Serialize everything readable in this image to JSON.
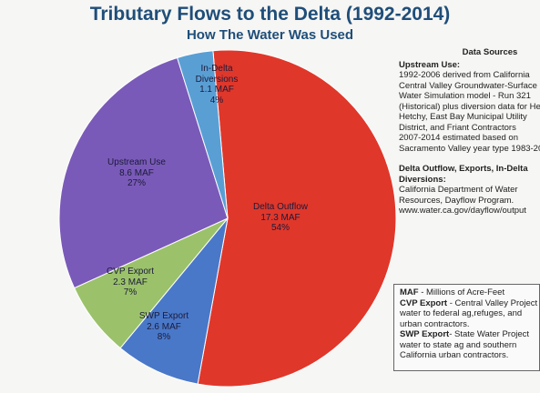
{
  "chart_data": {
    "type": "pie",
    "title": "Tributary Flows to the Delta (1992-2014)",
    "subtitle": "How The Water Was Used",
    "slices": [
      {
        "name": "Delta Outflow",
        "value": 17.3,
        "value_label": "17.3 MAF",
        "percent_label": "54%",
        "color": "#e0372b"
      },
      {
        "name": "SWP Export",
        "value": 2.6,
        "value_label": "2.6 MAF",
        "percent_label": "8%",
        "color": "#4a78c8"
      },
      {
        "name": "CVP Export",
        "value": 2.3,
        "value_label": "2.3 MAF",
        "percent_label": "7%",
        "color": "#9bc26a"
      },
      {
        "name": "Upstream Use",
        "value": 8.6,
        "value_label": "8.6 MAF",
        "percent_label": "27%",
        "color": "#7a5ab8"
      },
      {
        "name": "In-Delta Diversions",
        "name_lines": [
          "In-Delta",
          "Diversions"
        ],
        "value": 1.1,
        "value_label": "1.1 MAF",
        "percent_label": "4%",
        "color": "#5a9fd4"
      }
    ]
  },
  "sources": {
    "heading": "Data Sources",
    "upstream_heading": "Upstream Use:",
    "upstream_lines": [
      "1992-2006 derived from California",
      "Central Valley Groundwater-Surface",
      "Water Simulation model - Run 321",
      "(Historical) plus diversion data for He",
      "Hetchy, East Bay Municipal Utility",
      "District, and Friant Contractors",
      "2007-2014 estimated based on",
      "Sacramento Valley year type 1983-20"
    ],
    "delta_heading_1": "Delta Outflow, Exports, In-Delta",
    "delta_heading_2": "Diversions:",
    "delta_lines": [
      "California Department of Water",
      "Resources, Dayflow Program.",
      "www.water.ca.gov/dayflow/output"
    ]
  },
  "legend": {
    "maf_term": "MAF",
    "maf_def": " - Millions of Acre-Feet",
    "cvp_term": "CVP Export",
    "cvp_def_1": " - Central Valley Project",
    "cvp_def_2": "water  to federal ag,refuges, and",
    "cvp_def_3": "urban contractors.",
    "swp_term": "SWP Export",
    "swp_def_1": "- State Water Project",
    "swp_def_2": "water to state ag and southern",
    "swp_def_3": "California urban contractors."
  }
}
